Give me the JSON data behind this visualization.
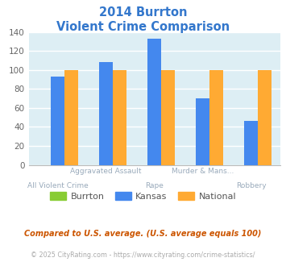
{
  "title_line1": "2014 Burrton",
  "title_line2": "Violent Crime Comparison",
  "title_color": "#3377cc",
  "cat_labels_top": [
    "",
    "Aggravated Assault",
    "",
    "Murder & Mans...",
    ""
  ],
  "cat_labels_bot": [
    "All Violent Crime",
    "",
    "Rape",
    "",
    "Robbery"
  ],
  "burrton": [
    0,
    0,
    0,
    0,
    0
  ],
  "kansas": [
    93,
    108,
    133,
    70,
    46
  ],
  "national": [
    100,
    100,
    100,
    100,
    100
  ],
  "burrton_color": "#88cc33",
  "kansas_color": "#4488ee",
  "national_color": "#ffaa33",
  "ylim": [
    0,
    140
  ],
  "yticks": [
    0,
    20,
    40,
    60,
    80,
    100,
    120,
    140
  ],
  "legend_labels": [
    "Burrton",
    "Kansas",
    "National"
  ],
  "footnote1": "Compared to U.S. average. (U.S. average equals 100)",
  "footnote2": "© 2025 CityRating.com - https://www.cityrating.com/crime-statistics/",
  "footnote1_color": "#cc5500",
  "footnote2_color": "#aaaaaa",
  "label_color": "#99aabb",
  "plot_bg_color": "#ddeef4"
}
